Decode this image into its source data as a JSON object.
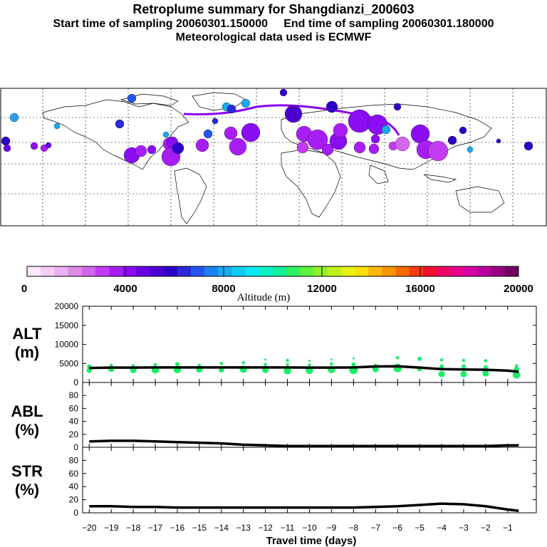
{
  "header": {
    "title": "Retroplume summary for Shangdianzi_200603",
    "start_label": "Start time of sampling 20060301.150000",
    "end_label": "End time of sampling 20060301.180000",
    "met_label": "Meteorological data used is ECMWF"
  },
  "colorbar": {
    "tick_labels": [
      "0",
      "4000",
      "8000",
      "12000",
      "16000",
      "20000"
    ],
    "label": "Altitude (m)",
    "colors": [
      "#fce7fc",
      "#f5cdf5",
      "#eab0f0",
      "#e08ae8",
      "#d466ee",
      "#c23cf2",
      "#a91df5",
      "#8b0df2",
      "#6a00e6",
      "#4c00cf",
      "#2d00c8",
      "#2a2ad8",
      "#2255ee",
      "#1a84f2",
      "#18aaf0",
      "#10ccf2",
      "#08e8f0",
      "#08f0c8",
      "#10f09a",
      "#30f064",
      "#60f040",
      "#90f028",
      "#c0f018",
      "#e8f010",
      "#f8e000",
      "#f8b800",
      "#f89400",
      "#f86a00",
      "#f83a10",
      "#f01030",
      "#f00060",
      "#e8008a",
      "#d800a8",
      "#b800a0",
      "#980080",
      "#700060"
    ]
  },
  "map": {
    "label_sizes": [
      "18",
      "19",
      "20",
      "17",
      "16",
      "15",
      "14",
      "13",
      "12",
      "11",
      "10",
      "9",
      "8",
      "7",
      "6",
      "5",
      "4",
      "3",
      "2",
      "1"
    ]
  },
  "chart_data": {
    "type": "line",
    "xlabel": "Travel time (days)",
    "x_ticks": [
      "−20",
      "−19",
      "−18",
      "−17",
      "−16",
      "−15",
      "−14",
      "−13",
      "−12",
      "−11",
      "−10",
      "−9",
      "−8",
      "−7",
      "−6",
      "−5",
      "−4",
      "−3",
      "−2",
      "−1"
    ],
    "x_values": [
      -20,
      -19,
      -18,
      -17,
      -16,
      -15,
      -14,
      -13,
      -12,
      -11,
      -10,
      -9,
      -8,
      -7,
      -6,
      -5,
      -4,
      -3,
      -2,
      -1,
      -0.5
    ],
    "xlim": [
      -20.3,
      0.3
    ],
    "panels": [
      {
        "name": "ALT",
        "ylabel": "ALT\n(m)",
        "label_line1": "ALT",
        "label_line2": "(m)",
        "ylim": [
          0,
          20000
        ],
        "y_ticks": [
          "20000",
          "15000",
          "10000",
          "5000",
          "0"
        ],
        "line": [
          3800,
          3900,
          3900,
          3950,
          3950,
          3950,
          3950,
          3950,
          3950,
          3950,
          3900,
          3900,
          3950,
          4200,
          4250,
          3900,
          3500,
          3400,
          3350,
          3100,
          2800
        ],
        "points": [
          {
            "x": -20,
            "y": 3200,
            "s": 5
          },
          {
            "x": -20,
            "y": 4200,
            "s": 4
          },
          {
            "x": -19,
            "y": 3600,
            "s": 6
          },
          {
            "x": -19,
            "y": 4500,
            "s": 3
          },
          {
            "x": -18,
            "y": 3300,
            "s": 6
          },
          {
            "x": -18,
            "y": 4400,
            "s": 3
          },
          {
            "x": -17,
            "y": 3300,
            "s": 7
          },
          {
            "x": -17,
            "y": 4700,
            "s": 3
          },
          {
            "x": -16,
            "y": 3400,
            "s": 7
          },
          {
            "x": -16,
            "y": 4800,
            "s": 4
          },
          {
            "x": -15,
            "y": 3400,
            "s": 6
          },
          {
            "x": -15,
            "y": 4500,
            "s": 3
          },
          {
            "x": -14,
            "y": 3300,
            "s": 5
          },
          {
            "x": -14,
            "y": 5000,
            "s": 3
          },
          {
            "x": -13,
            "y": 3500,
            "s": 7
          },
          {
            "x": -13,
            "y": 5200,
            "s": 3
          },
          {
            "x": -12,
            "y": 3300,
            "s": 6
          },
          {
            "x": -12,
            "y": 4700,
            "s": 3
          },
          {
            "x": -12,
            "y": 6000,
            "s": 2
          },
          {
            "x": -11,
            "y": 3100,
            "s": 7
          },
          {
            "x": -11,
            "y": 4700,
            "s": 3
          },
          {
            "x": -11,
            "y": 5800,
            "s": 3
          },
          {
            "x": -10,
            "y": 3200,
            "s": 7
          },
          {
            "x": -10,
            "y": 4600,
            "s": 3
          },
          {
            "x": -10,
            "y": 5700,
            "s": 2
          },
          {
            "x": -9,
            "y": 3400,
            "s": 7
          },
          {
            "x": -9,
            "y": 4900,
            "s": 3
          },
          {
            "x": -9,
            "y": 6000,
            "s": 2
          },
          {
            "x": -8,
            "y": 3300,
            "s": 8
          },
          {
            "x": -8,
            "y": 4700,
            "s": 4
          },
          {
            "x": -8,
            "y": 6300,
            "s": 2
          },
          {
            "x": -7,
            "y": 3500,
            "s": 6
          },
          {
            "x": -7,
            "y": 4500,
            "s": 3
          },
          {
            "x": -6,
            "y": 3800,
            "s": 8
          },
          {
            "x": -6,
            "y": 6500,
            "s": 3
          },
          {
            "x": -5,
            "y": 3600,
            "s": 5
          },
          {
            "x": -5,
            "y": 6200,
            "s": 4
          },
          {
            "x": -4,
            "y": 2200,
            "s": 6
          },
          {
            "x": -4,
            "y": 4200,
            "s": 4
          },
          {
            "x": -4,
            "y": 5900,
            "s": 3
          },
          {
            "x": -3,
            "y": 2200,
            "s": 6
          },
          {
            "x": -3,
            "y": 4200,
            "s": 4
          },
          {
            "x": -3,
            "y": 5800,
            "s": 3
          },
          {
            "x": -2,
            "y": 2400,
            "s": 6
          },
          {
            "x": -2,
            "y": 4000,
            "s": 4
          },
          {
            "x": -2,
            "y": 5700,
            "s": 3
          },
          {
            "x": -0.6,
            "y": 2000,
            "s": 7
          },
          {
            "x": -0.6,
            "y": 3500,
            "s": 5
          },
          {
            "x": -0.6,
            "y": 4400,
            "s": 3
          }
        ]
      },
      {
        "name": "ABL",
        "ylabel": "ABL\n(%)",
        "label_line1": "ABL",
        "label_line2": "(%)",
        "ylim": [
          0,
          100
        ],
        "y_ticks": [
          "80",
          "60",
          "40",
          "20",
          "0"
        ],
        "line": [
          9,
          10,
          10,
          9,
          8,
          7,
          6,
          4,
          3,
          2,
          2,
          2,
          2,
          2,
          2,
          2,
          2,
          2,
          2,
          3,
          3
        ],
        "points": []
      },
      {
        "name": "STR",
        "ylabel": "STR\n(%)",
        "label_line1": "STR",
        "label_line2": "(%)",
        "ylim": [
          0,
          100
        ],
        "y_ticks": [
          "80",
          "60",
          "40",
          "20",
          "0"
        ],
        "line": [
          10,
          10,
          9,
          9,
          8,
          8,
          8,
          8,
          8,
          8,
          8,
          8,
          8,
          9,
          10,
          12,
          14,
          13,
          10,
          5,
          3
        ],
        "points": []
      }
    ]
  }
}
